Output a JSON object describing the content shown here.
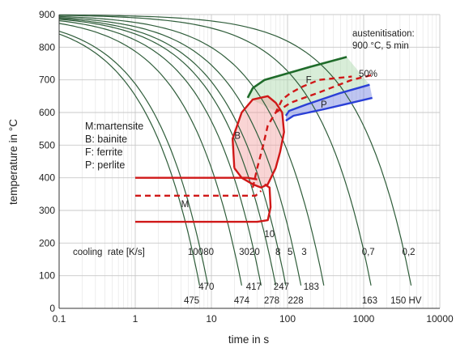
{
  "chart_data": {
    "type": "line",
    "title": "",
    "xlabel": "time in s",
    "ylabel": "temperature in °C",
    "x_scale": "log",
    "xlim": [
      0.1,
      10000
    ],
    "ylim": [
      0,
      900
    ],
    "x_ticks": [
      0.1,
      1,
      10,
      100,
      1000,
      10000
    ],
    "x_tick_labels": [
      "0.1",
      "1",
      "10",
      "100",
      "1000",
      "10000"
    ],
    "y_ticks": [
      0,
      100,
      200,
      300,
      400,
      500,
      600,
      700,
      800,
      900
    ],
    "y_tick_labels": [
      "0",
      "100",
      "200",
      "300",
      "400",
      "500",
      "600",
      "700",
      "800",
      "900"
    ],
    "grid": true,
    "annotation_box": [
      "austenitisation:",
      "900 °C, 5 min"
    ],
    "legend": [
      "M:martensite",
      "B: bainite",
      "F: ferrite",
      "P: perlite"
    ],
    "legend_placement": "left",
    "cooling_rate_label": "cooling  rate [K/s]",
    "cooling_curves": [
      {
        "rate": "100",
        "hardness": "475",
        "end_time": 7.0
      },
      {
        "rate": "80",
        "hardness": "470",
        "end_time": 9.0
      },
      {
        "rate": "30",
        "hardness": "474",
        "end_time": 25
      },
      {
        "rate": "20",
        "hardness": "417",
        "end_time": 45
      },
      {
        "rate": "10",
        "hardness": "278",
        "end_time": 70
      },
      {
        "rate": "8",
        "hardness": "247",
        "end_time": 95
      },
      {
        "rate": "5",
        "hardness": "228",
        "end_time": 150
      },
      {
        "rate": "3",
        "hardness": "183",
        "end_time": 300
      },
      {
        "rate": "0,7",
        "hardness": "163",
        "end_time": 1250
      },
      {
        "rate": "0,2",
        "hardness": "150 HV",
        "end_time": 4200
      }
    ],
    "regions": [
      {
        "name": "M",
        "label": "M"
      },
      {
        "name": "B",
        "label": "B"
      },
      {
        "name": "F",
        "label": "F"
      },
      {
        "name": "P",
        "label": "P"
      }
    ],
    "fifty_percent_label": "50%",
    "transformation_lines": {
      "ferrite_start": [
        [
          30,
          645
        ],
        [
          35,
          675
        ],
        [
          50,
          700
        ],
        [
          100,
          720
        ],
        [
          200,
          740
        ],
        [
          600,
          770
        ]
      ],
      "perlite_start_ferrite_end": [
        [
          95,
          590
        ],
        [
          105,
          605
        ],
        [
          180,
          625
        ],
        [
          500,
          660
        ],
        [
          1200,
          685
        ]
      ],
      "perlite_50": [
        [
          70,
          600
        ],
        [
          110,
          630
        ],
        [
          250,
          660
        ],
        [
          700,
          700
        ],
        [
          1300,
          715
        ]
      ],
      "perlite_end": [
        [
          95,
          575
        ],
        [
          120,
          590
        ],
        [
          300,
          610
        ],
        [
          700,
          630
        ],
        [
          1300,
          645
        ]
      ],
      "martensite_start": [
        [
          1,
          400
        ],
        [
          8,
          400
        ],
        [
          30,
          400
        ],
        [
          40,
          395
        ]
      ],
      "martensite_50": [
        [
          1,
          345
        ],
        [
          10,
          345
        ],
        [
          38,
          345
        ],
        [
          45,
          360
        ]
      ],
      "martensite_end": [
        [
          1,
          265
        ],
        [
          10,
          265
        ],
        [
          40,
          265
        ],
        [
          55,
          270
        ],
        [
          60,
          310
        ],
        [
          58,
          370
        ],
        [
          50,
          380
        ]
      ],
      "bainite_start": [
        [
          20,
          430
        ],
        [
          19,
          520
        ],
        [
          25,
          600
        ],
        [
          35,
          640
        ],
        [
          55,
          650
        ],
        [
          70,
          630
        ],
        [
          85,
          600
        ],
        [
          90,
          540
        ],
        [
          80,
          480
        ],
        [
          70,
          430
        ],
        [
          55,
          380
        ],
        [
          45,
          370
        ],
        [
          35,
          380
        ],
        [
          25,
          400
        ],
        [
          20,
          430
        ]
      ],
      "bainite_50": [
        [
          35,
          370
        ],
        [
          40,
          430
        ],
        [
          48,
          500
        ],
        [
          55,
          560
        ],
        [
          70,
          600
        ],
        [
          85,
          640
        ],
        [
          110,
          660
        ],
        [
          160,
          680
        ],
        [
          260,
          700
        ],
        [
          700,
          710
        ]
      ]
    }
  }
}
